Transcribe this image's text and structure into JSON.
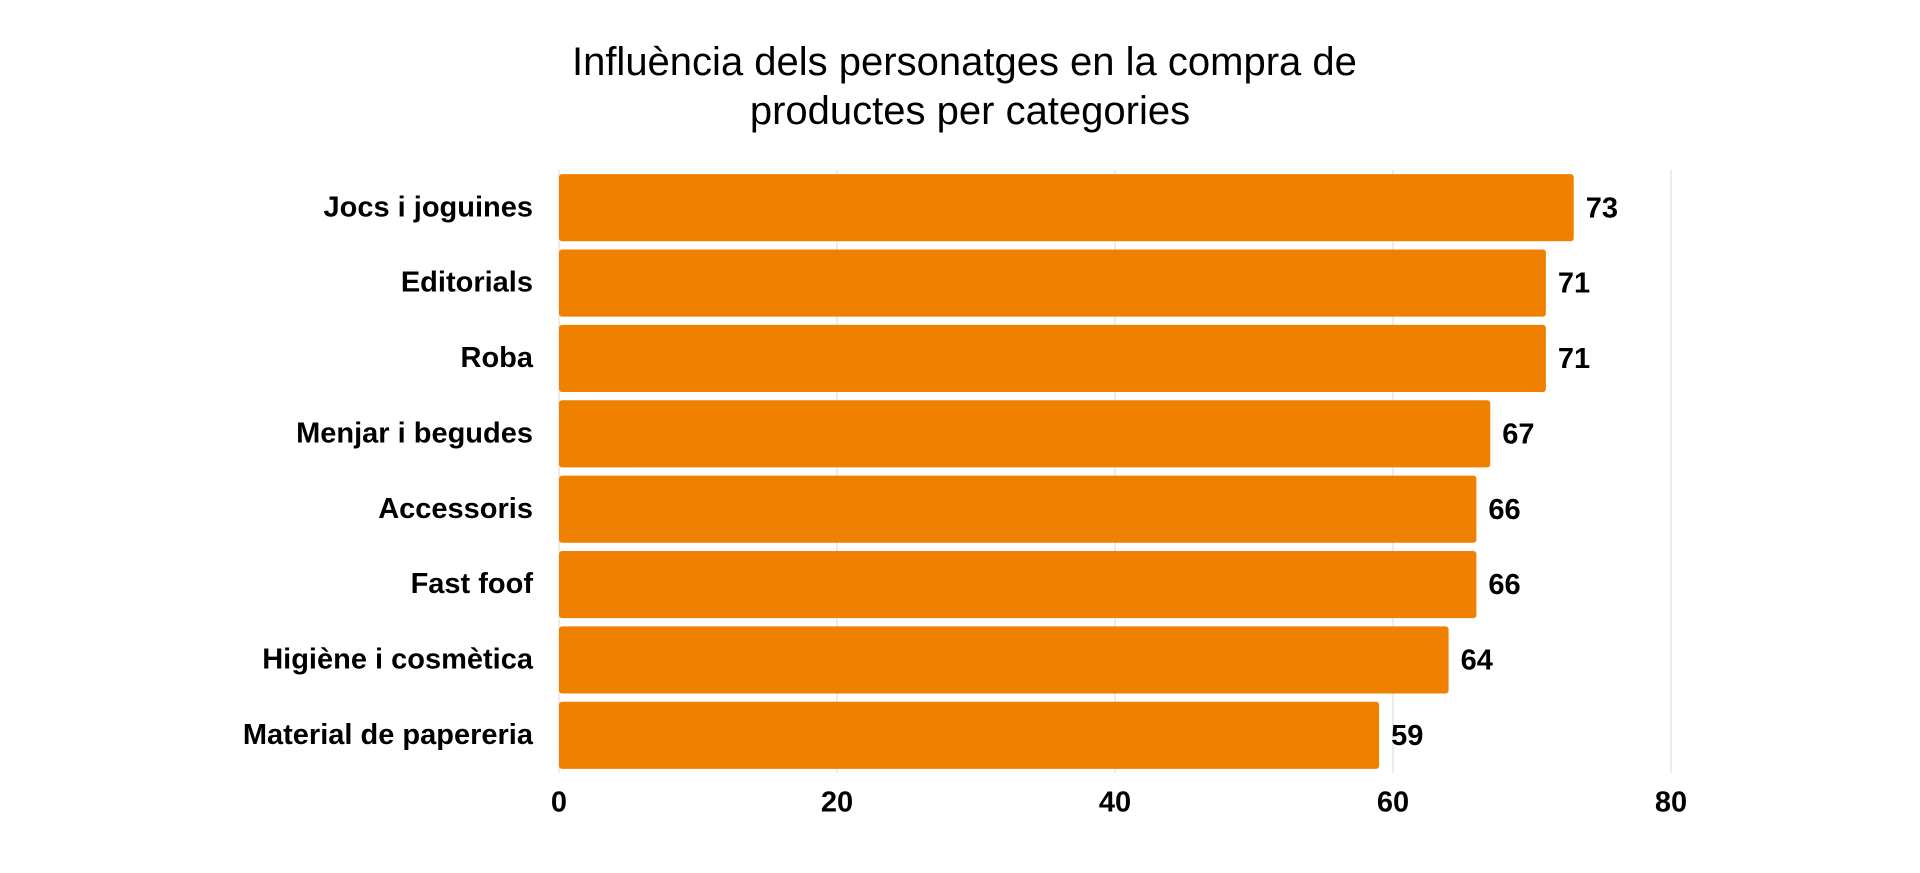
{
  "chart_data": {
    "type": "barh",
    "title": "Influència dels personatges en la compra de productes per categories",
    "categories": [
      "Jocs i joguines",
      "Editorials",
      "Roba",
      "Menjar i begudes",
      "Accessoris",
      "Fast foof",
      "Higiène i cosmètica",
      "Material de papereria"
    ],
    "values": [
      73,
      71,
      71,
      67,
      66,
      66,
      64,
      59
    ],
    "color": "#f08000",
    "xlim": [
      0,
      80
    ],
    "xticks": [
      0,
      20,
      40,
      60,
      80
    ],
    "grid": true
  }
}
